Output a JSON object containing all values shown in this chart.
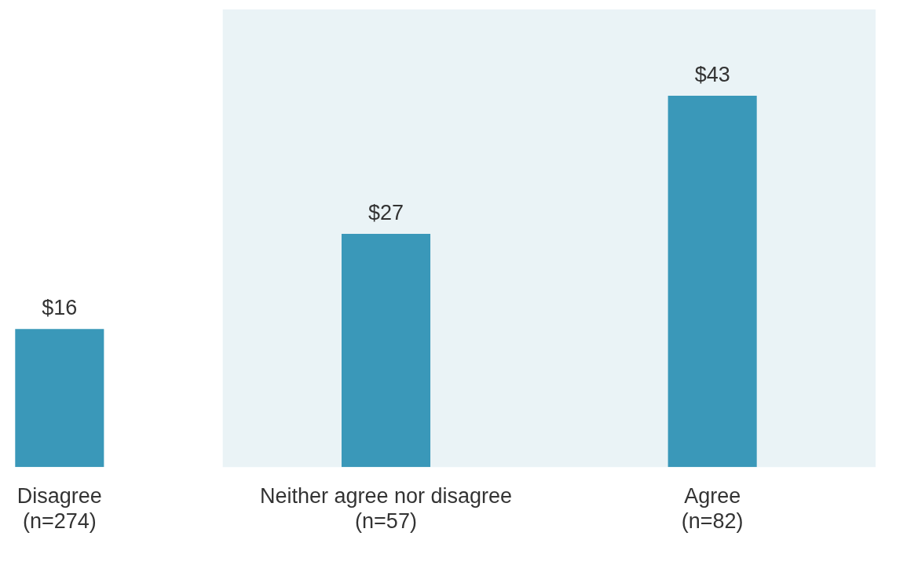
{
  "chart_data": {
    "type": "bar",
    "categories": [
      "Disagree (n=274)",
      "Neither agree nor disagree (n=57)",
      "Agree (n=82)"
    ],
    "values": [
      16,
      27,
      43
    ],
    "color": "#3a98b9",
    "value_labels": [
      "$16",
      "$27",
      "$43"
    ],
    "bands": [
      {
        "axis": "x",
        "from": "Neither agree nor disagree (n=57)",
        "to": "Agree (n=82)",
        "color": "#eaf3f6"
      }
    ],
    "grid": false,
    "legend": false
  }
}
